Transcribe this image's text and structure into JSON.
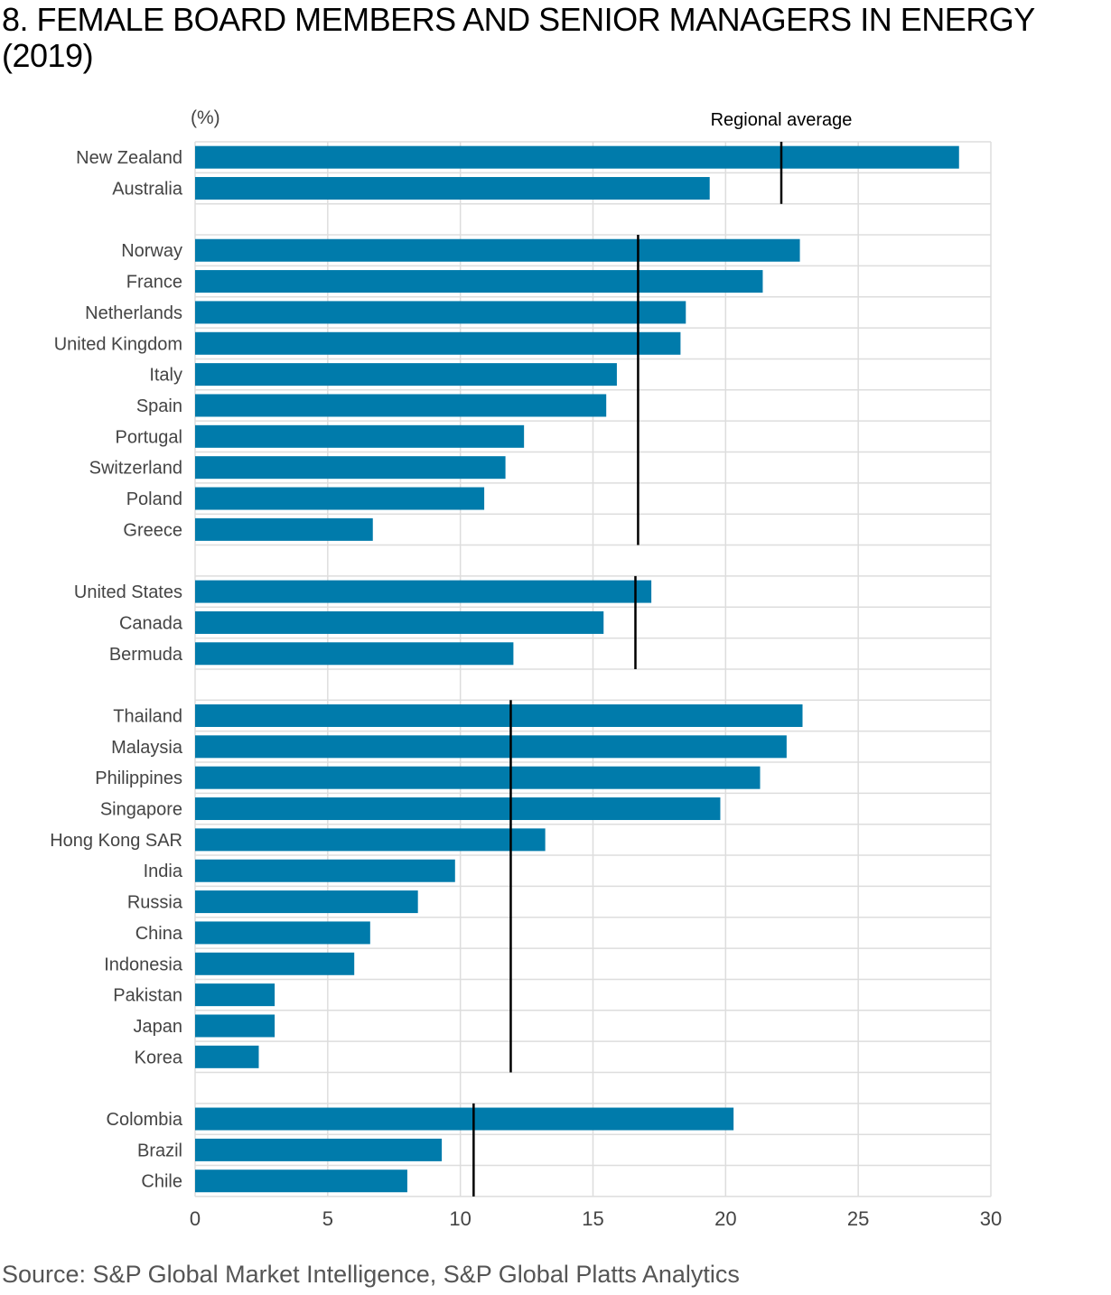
{
  "title": "8. FEMALE BOARD MEMBERS AND SENIOR MANAGERS IN ENERGY (2019)",
  "source": "Source: S&P Global Market Intelligence, S&P Global Platts Analytics",
  "colors": {
    "bar": "#007bab",
    "average_line": "#000000",
    "grid": "#dddddd",
    "label": "#444444"
  },
  "chart_data": {
    "type": "bar",
    "orientation": "horizontal",
    "unit_label": "(%)",
    "average_label": "Regional average",
    "xlim": [
      0,
      30
    ],
    "xticks": [
      0,
      5,
      10,
      15,
      20,
      25,
      30
    ],
    "grid": true,
    "groups": [
      {
        "average": 22.1,
        "items": [
          {
            "label": "New Zealand",
            "value": 28.8
          },
          {
            "label": "Australia",
            "value": 19.4
          }
        ]
      },
      {
        "average": 16.7,
        "items": [
          {
            "label": "Norway",
            "value": 22.8
          },
          {
            "label": "France",
            "value": 21.4
          },
          {
            "label": "Netherlands",
            "value": 18.5
          },
          {
            "label": "United Kingdom",
            "value": 18.3
          },
          {
            "label": "Italy",
            "value": 15.9
          },
          {
            "label": "Spain",
            "value": 15.5
          },
          {
            "label": "Portugal",
            "value": 12.4
          },
          {
            "label": "Switzerland",
            "value": 11.7
          },
          {
            "label": "Poland",
            "value": 10.9
          },
          {
            "label": "Greece",
            "value": 6.7
          }
        ]
      },
      {
        "average": 16.6,
        "items": [
          {
            "label": "United States",
            "value": 17.2
          },
          {
            "label": "Canada",
            "value": 15.4
          },
          {
            "label": "Bermuda",
            "value": 12.0
          }
        ]
      },
      {
        "average": 11.9,
        "items": [
          {
            "label": "Thailand",
            "value": 22.9
          },
          {
            "label": "Malaysia",
            "value": 22.3
          },
          {
            "label": "Philippines",
            "value": 21.3
          },
          {
            "label": "Singapore",
            "value": 19.8
          },
          {
            "label": "Hong Kong SAR",
            "value": 13.2
          },
          {
            "label": "India",
            "value": 9.8
          },
          {
            "label": "Russia",
            "value": 8.4
          },
          {
            "label": "China",
            "value": 6.6
          },
          {
            "label": "Indonesia",
            "value": 6.0
          },
          {
            "label": "Pakistan",
            "value": 3.0
          },
          {
            "label": "Japan",
            "value": 3.0
          },
          {
            "label": "Korea",
            "value": 2.4
          }
        ]
      },
      {
        "average": 10.5,
        "items": [
          {
            "label": "Colombia",
            "value": 20.3
          },
          {
            "label": "Brazil",
            "value": 9.3
          },
          {
            "label": "Chile",
            "value": 8.0
          }
        ]
      }
    ]
  }
}
